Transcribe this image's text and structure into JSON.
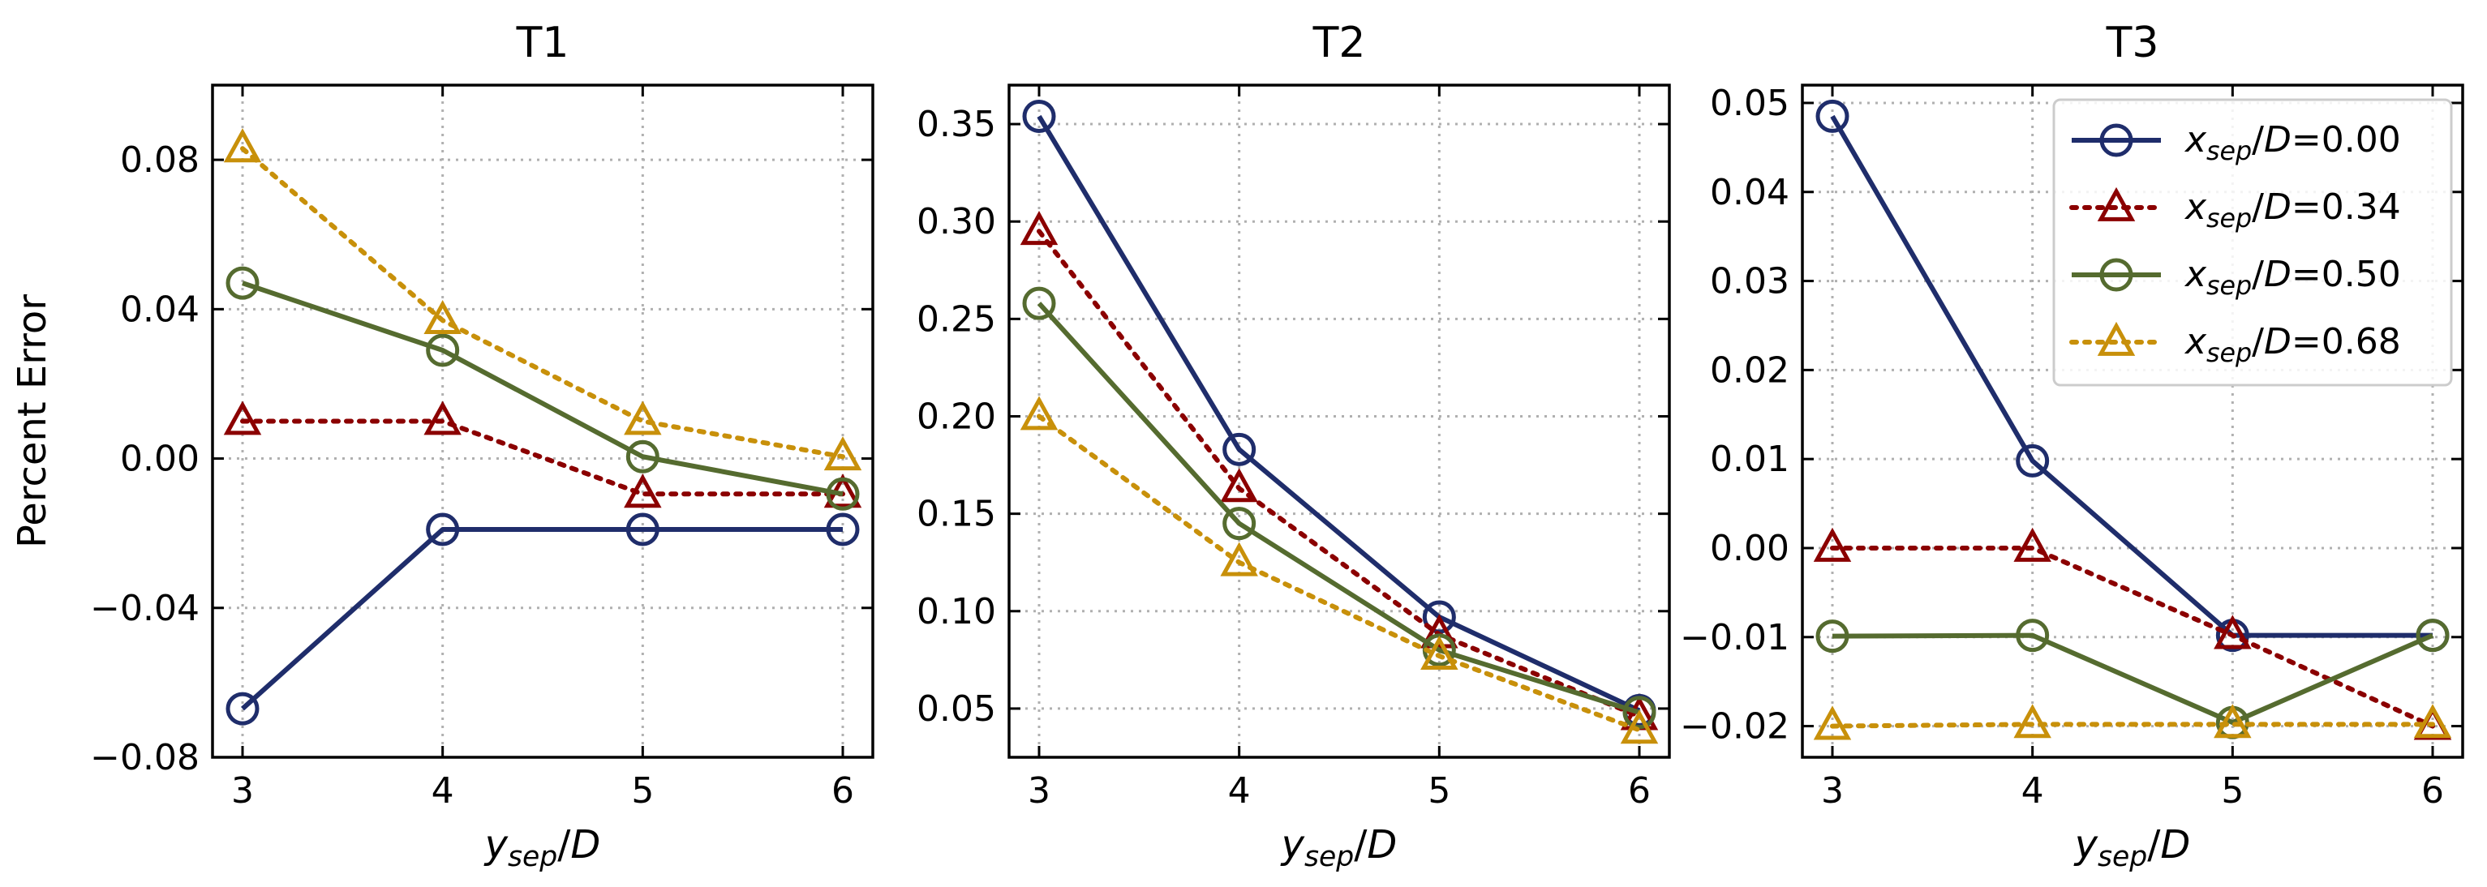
{
  "chart_data": [
    {
      "type": "line",
      "title": "T1",
      "xlabel": "y_sep/D",
      "xlabel_parts": {
        "base": "y",
        "sub": "sep",
        "rest": "/D"
      },
      "ylabel": "Percent Error",
      "x": [
        3,
        4,
        5,
        6
      ],
      "xlim": [
        2.85,
        6.15
      ],
      "ylim": [
        -0.08,
        0.1
      ],
      "xticks": [
        3,
        4,
        5,
        6
      ],
      "yticks": [
        -0.08,
        -0.04,
        0.0,
        0.04,
        0.08
      ],
      "ytick_labels": [
        "−0.08",
        "−0.04",
        "0.00",
        "0.04",
        "0.08"
      ],
      "grid": true,
      "series": [
        {
          "name": "x_sep/D=0.00",
          "values": [
            -0.067,
            -0.019,
            -0.019,
            -0.019
          ]
        },
        {
          "name": "x_sep/D=0.34",
          "values": [
            0.01,
            0.01,
            -0.0095,
            -0.0095
          ]
        },
        {
          "name": "x_sep/D=0.50",
          "values": [
            0.047,
            0.029,
            0.0005,
            -0.0095
          ]
        },
        {
          "name": "x_sep/D=0.68",
          "values": [
            0.083,
            0.037,
            0.01,
            0.0005
          ]
        }
      ]
    },
    {
      "type": "line",
      "title": "T2",
      "xlabel": "y_sep/D",
      "xlabel_parts": {
        "base": "y",
        "sub": "sep",
        "rest": "/D"
      },
      "ylabel": "",
      "x": [
        3,
        4,
        5,
        6
      ],
      "xlim": [
        2.85,
        6.15
      ],
      "ylim": [
        0.025,
        0.37
      ],
      "xticks": [
        3,
        4,
        5,
        6
      ],
      "yticks": [
        0.05,
        0.1,
        0.15,
        0.2,
        0.25,
        0.3,
        0.35
      ],
      "ytick_labels": [
        "0.05",
        "0.10",
        "0.15",
        "0.20",
        "0.25",
        "0.30",
        "0.35"
      ],
      "grid": true,
      "series": [
        {
          "name": "x_sep/D=0.00",
          "values": [
            0.354,
            0.183,
            0.097,
            0.049
          ]
        },
        {
          "name": "x_sep/D=0.34",
          "values": [
            0.295,
            0.163,
            0.088,
            0.046
          ]
        },
        {
          "name": "x_sep/D=0.50",
          "values": [
            0.258,
            0.145,
            0.08,
            0.048
          ]
        },
        {
          "name": "x_sep/D=0.68",
          "values": [
            0.2,
            0.125,
            0.077,
            0.039
          ]
        }
      ]
    },
    {
      "type": "line",
      "title": "T3",
      "xlabel": "y_sep/D",
      "xlabel_parts": {
        "base": "y",
        "sub": "sep",
        "rest": "/D"
      },
      "ylabel": "",
      "x": [
        3,
        4,
        5,
        6
      ],
      "xlim": [
        2.85,
        6.15
      ],
      "ylim": [
        -0.0235,
        0.052
      ],
      "xticks": [
        3,
        4,
        5,
        6
      ],
      "yticks": [
        -0.02,
        -0.01,
        0.0,
        0.01,
        0.02,
        0.03,
        0.04,
        0.05
      ],
      "ytick_labels": [
        "−0.02",
        "−0.01",
        "0.00",
        "0.01",
        "0.02",
        "0.03",
        "0.04",
        "0.05"
      ],
      "grid": true,
      "legend_location": "top-right",
      "series": [
        {
          "name": "x_sep/D=0.00",
          "values": [
            0.0485,
            0.0098,
            -0.0098,
            -0.0098
          ]
        },
        {
          "name": "x_sep/D=0.34",
          "values": [
            0.0,
            0.0,
            -0.0098,
            -0.02
          ]
        },
        {
          "name": "x_sep/D=0.50",
          "values": [
            -0.0099,
            -0.0098,
            -0.0196,
            -0.0098
          ]
        },
        {
          "name": "x_sep/D=0.68",
          "values": [
            -0.02,
            -0.0198,
            -0.0198,
            -0.0198
          ]
        }
      ]
    }
  ],
  "series_styles": [
    {
      "color": "#1f2d6b",
      "marker": "circle",
      "line": "solid"
    },
    {
      "color": "#8b0000",
      "marker": "triangle",
      "line": "dotted"
    },
    {
      "color": "#556b2f",
      "marker": "circle",
      "line": "solid"
    },
    {
      "color": "#c8900a",
      "marker": "triangle",
      "line": "dotted"
    }
  ],
  "legend": {
    "location": "top-right",
    "entries": [
      {
        "base": "x",
        "sub": "sep",
        "rest": "/D=0.00"
      },
      {
        "base": "x",
        "sub": "sep",
        "rest": "/D=0.34"
      },
      {
        "base": "x",
        "sub": "sep",
        "rest": "/D=0.50"
      },
      {
        "base": "x",
        "sub": "sep",
        "rest": "/D=0.68"
      }
    ]
  }
}
